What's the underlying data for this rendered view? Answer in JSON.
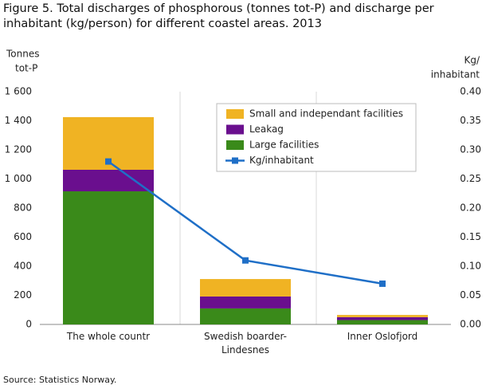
{
  "chart_data": {
    "type": "bar-line",
    "title": "Figure 5. Total discharges of phosphorous (tonnes tot-P) and discharge per inhabitant (kg/person) for different coastel areas. 2013",
    "ylabel": [
      "Tonnes",
      "tot-P"
    ],
    "y2label": [
      "Kg/",
      "inhabitant"
    ],
    "categories": [
      "The whole countr",
      "Swedish boarder-Lindesnes",
      "Inner Oslofjord"
    ],
    "series": [
      {
        "name": "Large facilities",
        "color": "#3a8a1a",
        "values": [
          915,
          110,
          30
        ]
      },
      {
        "name": "Leakag",
        "color": "#6a0f8e",
        "values": [
          148,
          82,
          20
        ]
      },
      {
        "name": "Small and independant facilities",
        "color": "#f0b323",
        "values": [
          362,
          120,
          15
        ]
      },
      {
        "name": "Kg/inhabitant",
        "color": "#1f6fc7",
        "axis": "y2",
        "values": [
          0.28,
          0.11,
          0.07
        ]
      }
    ],
    "ylim": [
      0,
      1600
    ],
    "yticks": [
      0,
      200,
      400,
      600,
      800,
      {
        "value": 1000,
        "label": "1 000"
      },
      {
        "value": 1200,
        "label": "1 200"
      },
      {
        "value": 1400,
        "label": "1 400"
      },
      {
        "value": 1600,
        "label": "1 600"
      }
    ],
    "y2lim": [
      0,
      0.4
    ],
    "y2ticks": [
      {
        "value": 0,
        "label": "0.00"
      },
      0.05,
      {
        "value": 0.1,
        "label": "0.10"
      },
      0.15,
      {
        "value": 0.2,
        "label": "0.20"
      },
      0.25,
      {
        "value": 0.3,
        "label": "0.30"
      },
      0.35,
      {
        "value": 0.4,
        "label": "0.40"
      }
    ],
    "legend": "top-right",
    "source": "Source: Statistics Norway."
  }
}
